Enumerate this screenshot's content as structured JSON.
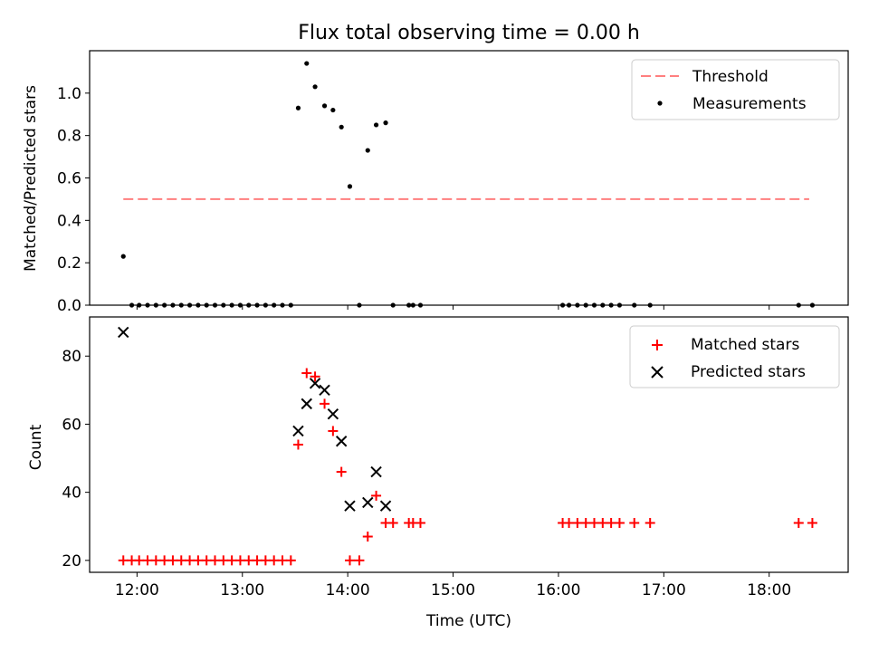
{
  "figure": {
    "title": "Flux total observing time = 0.00 h"
  },
  "chart_data": [
    {
      "type": "scatter",
      "panel": "top",
      "xlabel": "",
      "ylabel": "Matched/Predicted stars",
      "xlim": [
        11.55,
        18.75
      ],
      "ylim": [
        0.0,
        1.2
      ],
      "yticks": [
        0.0,
        0.2,
        0.4,
        0.6,
        0.8,
        1.0
      ],
      "yticklabels": [
        "0.0",
        "0.2",
        "0.4",
        "0.6",
        "0.8",
        "1.0"
      ],
      "xticks": [
        12,
        13,
        14,
        15,
        16,
        17,
        18
      ],
      "legend_position": "top-right",
      "legend": [
        "Threshold",
        "Measurements"
      ],
      "threshold": {
        "name": "Threshold",
        "value": 0.5,
        "x_range": [
          11.87,
          18.38
        ],
        "color": "#ff7f7f"
      },
      "measurements": {
        "name": "Measurements",
        "color": "#000000",
        "points": [
          [
            11.87,
            0.23
          ],
          [
            11.95,
            0.0
          ],
          [
            12.02,
            0.0
          ],
          [
            12.1,
            0.0
          ],
          [
            12.18,
            0.0
          ],
          [
            12.26,
            0.0
          ],
          [
            12.34,
            0.0
          ],
          [
            12.42,
            0.0
          ],
          [
            12.5,
            0.0
          ],
          [
            12.58,
            0.0
          ],
          [
            12.66,
            0.0
          ],
          [
            12.74,
            0.0
          ],
          [
            12.82,
            0.0
          ],
          [
            12.9,
            0.0
          ],
          [
            12.98,
            0.0
          ],
          [
            13.06,
            0.0
          ],
          [
            13.14,
            0.0
          ],
          [
            13.22,
            0.0
          ],
          [
            13.3,
            0.0
          ],
          [
            13.38,
            0.0
          ],
          [
            13.46,
            0.0
          ],
          [
            13.53,
            0.93
          ],
          [
            13.61,
            1.14
          ],
          [
            13.69,
            1.03
          ],
          [
            13.78,
            0.94
          ],
          [
            13.86,
            0.92
          ],
          [
            13.94,
            0.84
          ],
          [
            14.02,
            0.56
          ],
          [
            14.11,
            0.0
          ],
          [
            14.19,
            0.73
          ],
          [
            14.27,
            0.85
          ],
          [
            14.36,
            0.86
          ],
          [
            14.43,
            0.0
          ],
          [
            14.58,
            0.0
          ],
          [
            14.62,
            0.0
          ],
          [
            14.69,
            0.0
          ],
          [
            16.04,
            0.0
          ],
          [
            16.1,
            0.0
          ],
          [
            16.18,
            0.0
          ],
          [
            16.26,
            0.0
          ],
          [
            16.34,
            0.0
          ],
          [
            16.42,
            0.0
          ],
          [
            16.5,
            0.0
          ],
          [
            16.58,
            0.0
          ],
          [
            16.72,
            0.0
          ],
          [
            16.87,
            0.0
          ],
          [
            18.28,
            0.0
          ],
          [
            18.41,
            0.0
          ]
        ]
      }
    },
    {
      "type": "scatter",
      "panel": "bottom",
      "xlabel": "Time (UTC)",
      "ylabel": "Count",
      "xlim": [
        11.55,
        18.75
      ],
      "ylim": [
        16.5,
        91.5
      ],
      "yticks": [
        20,
        40,
        60,
        80
      ],
      "yticklabels": [
        "20",
        "40",
        "60",
        "80"
      ],
      "xticks": [
        12,
        13,
        14,
        15,
        16,
        17,
        18
      ],
      "xticklabels": [
        "12:00",
        "13:00",
        "14:00",
        "15:00",
        "16:00",
        "17:00",
        "18:00"
      ],
      "legend_position": "top-right",
      "legend": [
        "Matched stars",
        "Predicted stars"
      ],
      "series": [
        {
          "name": "Matched stars",
          "marker": "+",
          "color": "#ff0000",
          "points": [
            [
              11.87,
              20
            ],
            [
              11.95,
              20
            ],
            [
              12.02,
              20
            ],
            [
              12.1,
              20
            ],
            [
              12.18,
              20
            ],
            [
              12.26,
              20
            ],
            [
              12.34,
              20
            ],
            [
              12.42,
              20
            ],
            [
              12.5,
              20
            ],
            [
              12.58,
              20
            ],
            [
              12.66,
              20
            ],
            [
              12.74,
              20
            ],
            [
              12.82,
              20
            ],
            [
              12.9,
              20
            ],
            [
              12.98,
              20
            ],
            [
              13.06,
              20
            ],
            [
              13.14,
              20
            ],
            [
              13.22,
              20
            ],
            [
              13.3,
              20
            ],
            [
              13.38,
              20
            ],
            [
              13.46,
              20
            ],
            [
              13.53,
              54
            ],
            [
              13.61,
              75
            ],
            [
              13.69,
              74
            ],
            [
              13.78,
              66
            ],
            [
              13.86,
              58
            ],
            [
              13.94,
              46
            ],
            [
              14.02,
              20
            ],
            [
              14.11,
              20
            ],
            [
              14.19,
              27
            ],
            [
              14.27,
              39
            ],
            [
              14.36,
              31
            ],
            [
              14.43,
              31
            ],
            [
              14.58,
              31
            ],
            [
              14.62,
              31
            ],
            [
              14.69,
              31
            ],
            [
              16.04,
              31
            ],
            [
              16.1,
              31
            ],
            [
              16.18,
              31
            ],
            [
              16.26,
              31
            ],
            [
              16.34,
              31
            ],
            [
              16.42,
              31
            ],
            [
              16.5,
              31
            ],
            [
              16.58,
              31
            ],
            [
              16.72,
              31
            ],
            [
              16.87,
              31
            ],
            [
              18.28,
              31
            ],
            [
              18.41,
              31
            ]
          ]
        },
        {
          "name": "Predicted stars",
          "marker": "x",
          "color": "#000000",
          "points": [
            [
              11.87,
              87
            ],
            [
              13.53,
              58
            ],
            [
              13.61,
              66
            ],
            [
              13.69,
              72
            ],
            [
              13.78,
              70
            ],
            [
              13.86,
              63
            ],
            [
              13.94,
              55
            ],
            [
              14.02,
              36
            ],
            [
              14.19,
              37
            ],
            [
              14.27,
              46
            ],
            [
              14.36,
              36
            ]
          ]
        }
      ]
    }
  ]
}
